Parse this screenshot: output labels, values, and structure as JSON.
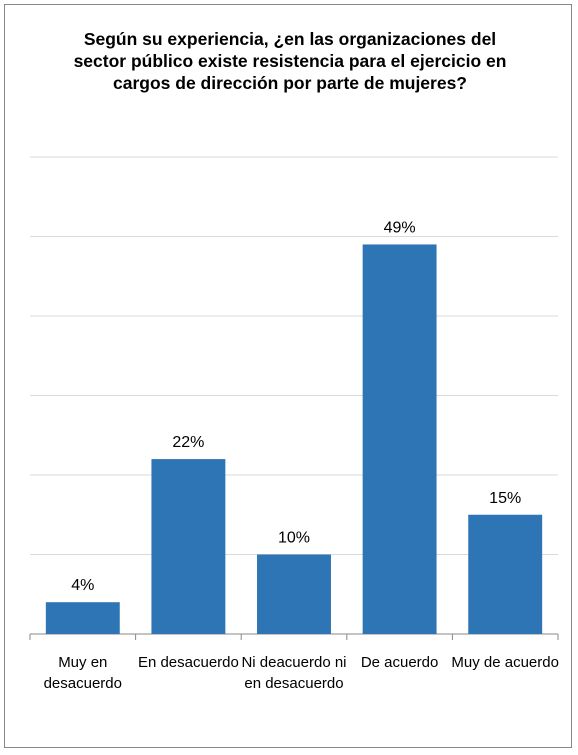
{
  "chart_data": {
    "type": "bar",
    "title": "Según su experiencia, ¿en las organizaciones del sector público existe resistencia para el ejercicio en cargos de dirección por parte de mujeres?",
    "categories": [
      "Muy en desacuerdo",
      "En desacuerdo",
      "Ni deacuerdo ni en desacuerdo",
      "De acuerdo",
      "Muy de acuerdo"
    ],
    "values": [
      4,
      22,
      10,
      49,
      15
    ],
    "value_labels": [
      "4%",
      "22%",
      "10%",
      "49%",
      "15%"
    ],
    "color": "#2e75b6",
    "ylim": [
      0,
      60
    ],
    "yticks": [
      0,
      10,
      20,
      30,
      40,
      50,
      60
    ],
    "grid": true
  }
}
